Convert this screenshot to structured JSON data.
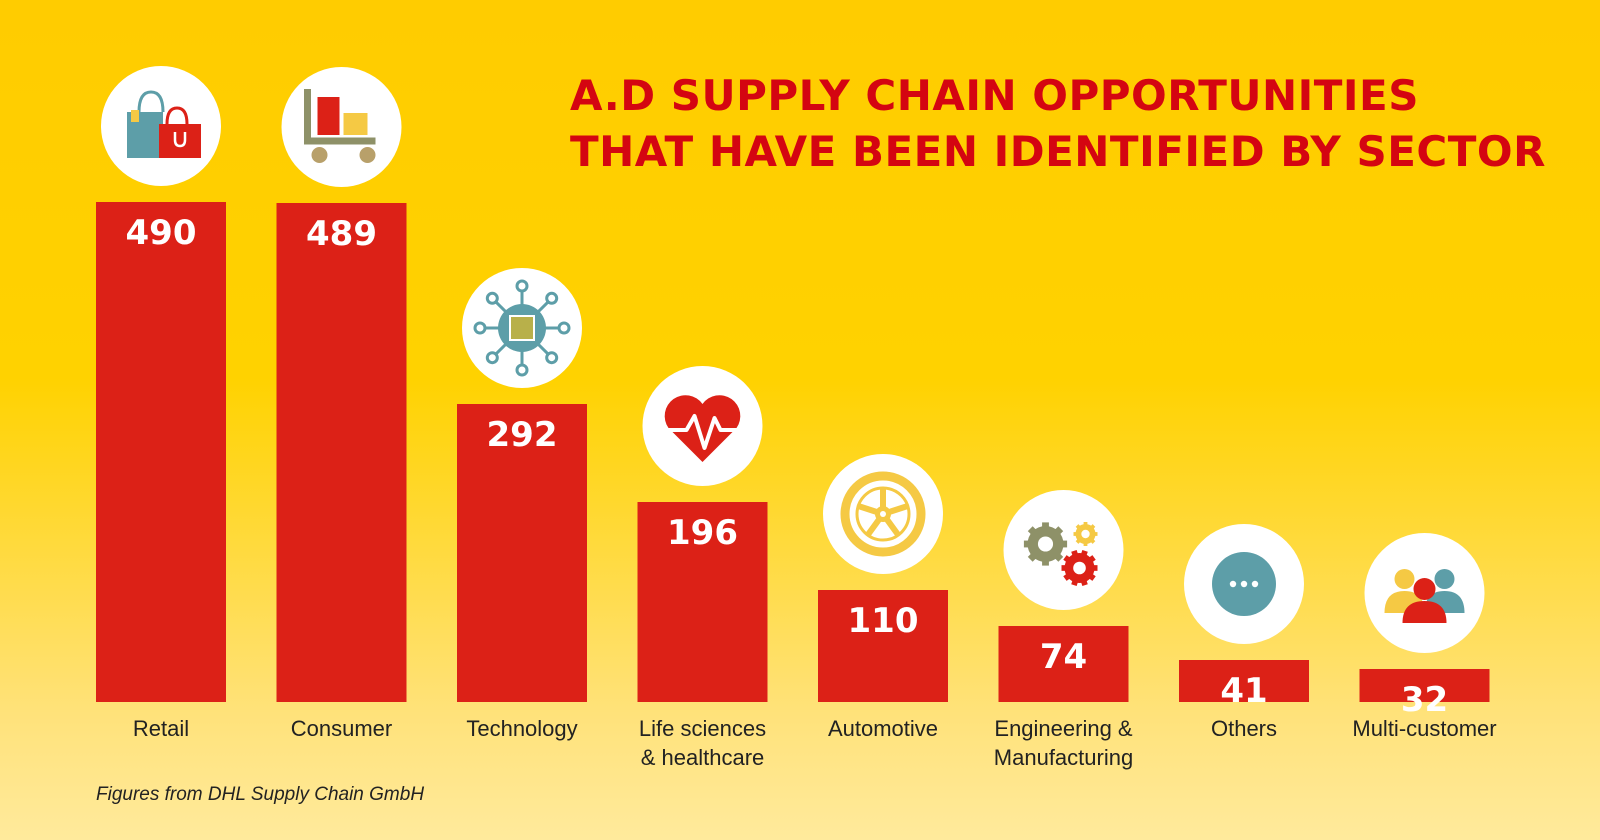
{
  "title_lines": [
    "A.D SUPPLY CHAIN OPPORTUNITIES",
    "THAT HAVE BEEN IDENTIFIED BY SECTOR"
  ],
  "footnote": "Figures from DHL Supply Chain GmbH",
  "colors": {
    "bar": "#DC2117",
    "background": "#FFCC00",
    "title": "#D40511",
    "icon_teal": "#5D9EA8",
    "icon_yellow": "#F5C944",
    "icon_olive": "#8E9168"
  },
  "chart_data": {
    "type": "bar",
    "title": "A.D SUPPLY CHAIN OPPORTUNITIES THAT HAVE BEEN IDENTIFIED BY SECTOR",
    "categories": [
      [
        "Retail"
      ],
      [
        "Consumer"
      ],
      [
        "Technology"
      ],
      [
        "Life sciences",
        "& healthcare"
      ],
      [
        "Automotive"
      ],
      [
        "Engineering &",
        "Manufacturing"
      ],
      [
        "Others"
      ],
      [
        "Multi-customer"
      ]
    ],
    "values": [
      490,
      489,
      292,
      196,
      110,
      74,
      41,
      32
    ],
    "icons": [
      "shopping-bags-icon",
      "cart-icon",
      "chip-icon",
      "heart-pulse-icon",
      "wheel-icon",
      "gears-icon",
      "ellipsis-icon",
      "people-icon"
    ],
    "ylim": [
      0,
      490
    ],
    "grid": false,
    "legend": "none"
  }
}
